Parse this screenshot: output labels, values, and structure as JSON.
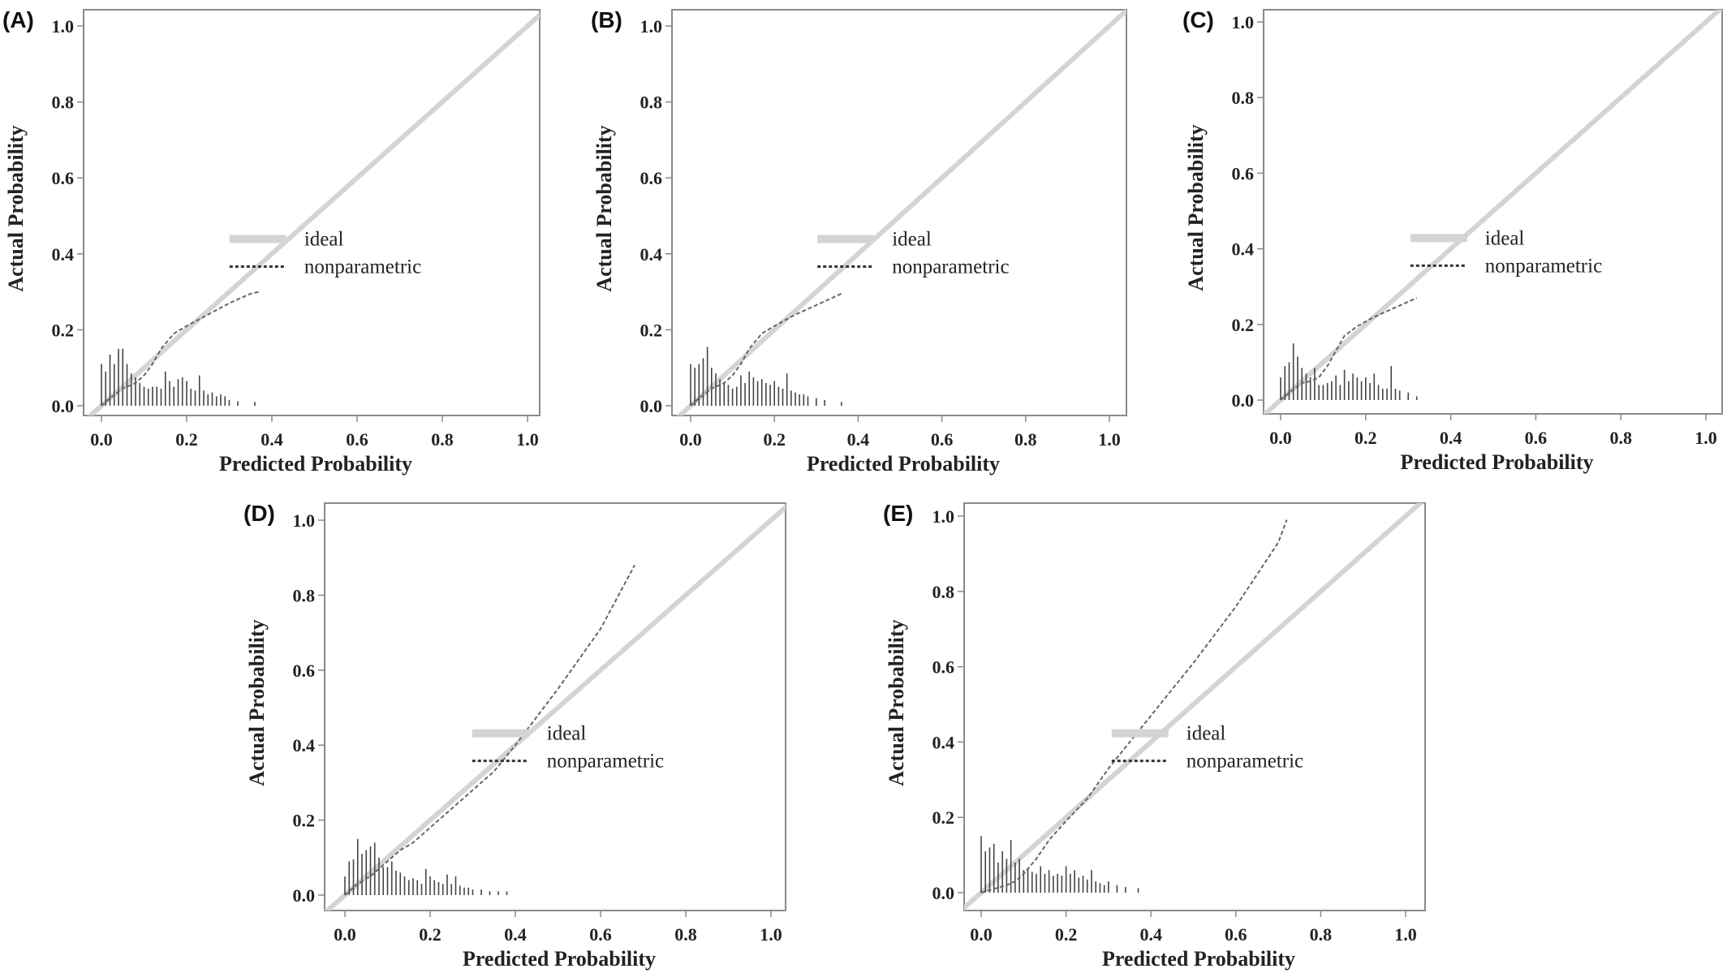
{
  "figure": {
    "panels": [
      "(A)",
      "(B)",
      "(C)",
      "(D)",
      "(E)"
    ]
  },
  "colors": {
    "ideal": "#d4d4d4",
    "nonparametric": "#666666",
    "histogram": "#444444",
    "frame": "#8a8a8a"
  },
  "chart_data": [
    {
      "panel": "(A)",
      "type": "line",
      "xlabel": "Predicted Probability",
      "ylabel": "Actual Probability",
      "xlim": [
        0,
        1
      ],
      "ylim": [
        0,
        1
      ],
      "x_ticks": [
        "0.0",
        "0.2",
        "0.4",
        "0.6",
        "0.8",
        "1.0"
      ],
      "y_ticks": [
        "0.0",
        "0.2",
        "0.4",
        "0.6",
        "0.8",
        "1.0"
      ],
      "legend": {
        "ideal": "ideal",
        "nonparametric": "nonparametric"
      },
      "series": [
        {
          "name": "ideal",
          "x": [
            0,
            1
          ],
          "y": [
            0,
            1
          ]
        },
        {
          "name": "nonparametric",
          "x": [
            0.0,
            0.02,
            0.05,
            0.08,
            0.1,
            0.12,
            0.14,
            0.17,
            0.2,
            0.25,
            0.3,
            0.35,
            0.37
          ],
          "y": [
            0.0,
            0.02,
            0.045,
            0.06,
            0.08,
            0.11,
            0.15,
            0.19,
            0.21,
            0.24,
            0.27,
            0.295,
            0.3
          ]
        }
      ],
      "histogram": {
        "x": [
          0.0,
          0.01,
          0.02,
          0.03,
          0.04,
          0.05,
          0.06,
          0.07,
          0.08,
          0.09,
          0.1,
          0.11,
          0.12,
          0.13,
          0.14,
          0.15,
          0.16,
          0.17,
          0.18,
          0.19,
          0.2,
          0.21,
          0.22,
          0.23,
          0.24,
          0.25,
          0.26,
          0.27,
          0.28,
          0.29,
          0.3,
          0.32,
          0.36
        ],
        "h": [
          0.11,
          0.09,
          0.135,
          0.11,
          0.15,
          0.15,
          0.11,
          0.085,
          0.075,
          0.06,
          0.05,
          0.045,
          0.05,
          0.05,
          0.045,
          0.09,
          0.065,
          0.05,
          0.07,
          0.075,
          0.065,
          0.045,
          0.04,
          0.08,
          0.04,
          0.03,
          0.035,
          0.025,
          0.03,
          0.025,
          0.015,
          0.012,
          0.01
        ]
      }
    },
    {
      "panel": "(B)",
      "type": "line",
      "xlabel": "Predicted Probability",
      "ylabel": "Actual Probability",
      "xlim": [
        0,
        1
      ],
      "ylim": [
        0,
        1
      ],
      "x_ticks": [
        "0.0",
        "0.2",
        "0.4",
        "0.6",
        "0.8",
        "1.0"
      ],
      "y_ticks": [
        "0.0",
        "0.2",
        "0.4",
        "0.6",
        "0.8",
        "1.0"
      ],
      "legend": {
        "ideal": "ideal",
        "nonparametric": "nonparametric"
      },
      "series": [
        {
          "name": "ideal",
          "x": [
            0,
            1
          ],
          "y": [
            0,
            1
          ]
        },
        {
          "name": "nonparametric",
          "x": [
            0.0,
            0.02,
            0.05,
            0.08,
            0.1,
            0.12,
            0.14,
            0.17,
            0.2,
            0.25,
            0.3,
            0.35,
            0.36
          ],
          "y": [
            0.0,
            0.02,
            0.045,
            0.06,
            0.08,
            0.11,
            0.15,
            0.19,
            0.21,
            0.24,
            0.265,
            0.29,
            0.295
          ]
        }
      ],
      "histogram": {
        "x": [
          0.0,
          0.01,
          0.02,
          0.03,
          0.04,
          0.05,
          0.06,
          0.07,
          0.08,
          0.09,
          0.1,
          0.11,
          0.12,
          0.13,
          0.14,
          0.15,
          0.16,
          0.17,
          0.18,
          0.19,
          0.2,
          0.21,
          0.22,
          0.23,
          0.24,
          0.25,
          0.26,
          0.27,
          0.28,
          0.3,
          0.32,
          0.36
        ],
        "h": [
          0.11,
          0.1,
          0.11,
          0.125,
          0.155,
          0.1,
          0.085,
          0.07,
          0.06,
          0.055,
          0.045,
          0.05,
          0.08,
          0.06,
          0.09,
          0.075,
          0.065,
          0.07,
          0.06,
          0.055,
          0.065,
          0.05,
          0.045,
          0.085,
          0.04,
          0.035,
          0.03,
          0.03,
          0.025,
          0.02,
          0.015,
          0.01
        ]
      }
    },
    {
      "panel": "(C)",
      "type": "line",
      "xlabel": "Predicted Probability",
      "ylabel": "Actual Probability",
      "xlim": [
        0,
        1
      ],
      "ylim": [
        0,
        1
      ],
      "x_ticks": [
        "0.0",
        "0.2",
        "0.4",
        "0.6",
        "0.8",
        "1.0"
      ],
      "y_ticks": [
        "0.0",
        "0.2",
        "0.4",
        "0.6",
        "0.8",
        "1.0"
      ],
      "legend": {
        "ideal": "ideal",
        "nonparametric": "nonparametric"
      },
      "series": [
        {
          "name": "ideal",
          "x": [
            0,
            1
          ],
          "y": [
            0,
            1
          ]
        },
        {
          "name": "nonparametric",
          "x": [
            0.0,
            0.02,
            0.05,
            0.07,
            0.09,
            0.11,
            0.13,
            0.15,
            0.18,
            0.22,
            0.27,
            0.32
          ],
          "y": [
            0.0,
            0.02,
            0.045,
            0.05,
            0.06,
            0.09,
            0.13,
            0.17,
            0.195,
            0.22,
            0.245,
            0.27
          ]
        }
      ],
      "histogram": {
        "x": [
          0.0,
          0.01,
          0.02,
          0.03,
          0.04,
          0.05,
          0.06,
          0.07,
          0.08,
          0.09,
          0.1,
          0.11,
          0.12,
          0.13,
          0.14,
          0.15,
          0.16,
          0.17,
          0.18,
          0.19,
          0.2,
          0.21,
          0.22,
          0.23,
          0.24,
          0.25,
          0.26,
          0.27,
          0.28,
          0.3,
          0.32
        ],
        "h": [
          0.06,
          0.09,
          0.1,
          0.15,
          0.115,
          0.085,
          0.07,
          0.06,
          0.085,
          0.04,
          0.04,
          0.045,
          0.05,
          0.065,
          0.04,
          0.08,
          0.05,
          0.07,
          0.06,
          0.05,
          0.06,
          0.045,
          0.07,
          0.04,
          0.03,
          0.03,
          0.09,
          0.03,
          0.025,
          0.02,
          0.01
        ]
      }
    },
    {
      "panel": "(D)",
      "type": "line",
      "xlabel": "Predicted Probability",
      "ylabel": "Actual Probability",
      "xlim": [
        0,
        1
      ],
      "ylim": [
        0,
        1
      ],
      "x_ticks": [
        "0.0",
        "0.2",
        "0.4",
        "0.6",
        "0.8",
        "1.0"
      ],
      "y_ticks": [
        "0.0",
        "0.2",
        "0.4",
        "0.6",
        "0.8",
        "1.0"
      ],
      "legend": {
        "ideal": "ideal",
        "nonparametric": "nonparametric"
      },
      "series": [
        {
          "name": "ideal",
          "x": [
            0,
            1
          ],
          "y": [
            0,
            1
          ]
        },
        {
          "name": "nonparametric",
          "x": [
            0.0,
            0.03,
            0.06,
            0.1,
            0.13,
            0.16,
            0.2,
            0.25,
            0.3,
            0.35,
            0.4,
            0.5,
            0.6,
            0.68
          ],
          "y": [
            0.0,
            0.03,
            0.05,
            0.09,
            0.12,
            0.14,
            0.18,
            0.23,
            0.28,
            0.33,
            0.4,
            0.55,
            0.71,
            0.88
          ]
        }
      ],
      "histogram": {
        "x": [
          0.0,
          0.01,
          0.02,
          0.03,
          0.04,
          0.05,
          0.06,
          0.07,
          0.08,
          0.09,
          0.1,
          0.11,
          0.12,
          0.13,
          0.14,
          0.15,
          0.16,
          0.17,
          0.18,
          0.19,
          0.2,
          0.21,
          0.22,
          0.23,
          0.24,
          0.25,
          0.26,
          0.27,
          0.28,
          0.29,
          0.3,
          0.32,
          0.34,
          0.36,
          0.38
        ],
        "h": [
          0.05,
          0.09,
          0.095,
          0.15,
          0.11,
          0.12,
          0.13,
          0.14,
          0.1,
          0.075,
          0.075,
          0.09,
          0.065,
          0.06,
          0.05,
          0.04,
          0.045,
          0.04,
          0.03,
          0.07,
          0.05,
          0.04,
          0.035,
          0.03,
          0.055,
          0.03,
          0.05,
          0.025,
          0.02,
          0.02,
          0.015,
          0.015,
          0.01,
          0.01,
          0.01
        ]
      }
    },
    {
      "panel": "(E)",
      "type": "line",
      "xlabel": "Predicted Probability",
      "ylabel": "Actual Probability",
      "xlim": [
        0,
        1
      ],
      "ylim": [
        0,
        1
      ],
      "x_ticks": [
        "0.0",
        "0.2",
        "0.4",
        "0.6",
        "0.8",
        "1.0"
      ],
      "y_ticks": [
        "0.0",
        "0.2",
        "0.4",
        "0.6",
        "0.8",
        "1.0"
      ],
      "legend": {
        "ideal": "ideal",
        "nonparametric": "nonparametric"
      },
      "series": [
        {
          "name": "ideal",
          "x": [
            0,
            1
          ],
          "y": [
            0,
            1
          ]
        },
        {
          "name": "nonparametric",
          "x": [
            0.0,
            0.03,
            0.06,
            0.08,
            0.1,
            0.13,
            0.16,
            0.2,
            0.25,
            0.3,
            0.4,
            0.5,
            0.6,
            0.7,
            0.72
          ],
          "y": [
            0.0,
            0.01,
            0.02,
            0.03,
            0.05,
            0.09,
            0.14,
            0.19,
            0.25,
            0.33,
            0.47,
            0.61,
            0.76,
            0.93,
            0.99
          ]
        }
      ],
      "histogram": {
        "x": [
          0.0,
          0.01,
          0.02,
          0.03,
          0.04,
          0.05,
          0.06,
          0.07,
          0.08,
          0.09,
          0.1,
          0.11,
          0.12,
          0.13,
          0.14,
          0.15,
          0.16,
          0.17,
          0.18,
          0.19,
          0.2,
          0.21,
          0.22,
          0.23,
          0.24,
          0.25,
          0.26,
          0.27,
          0.28,
          0.29,
          0.3,
          0.32,
          0.34,
          0.37
        ],
        "h": [
          0.15,
          0.11,
          0.12,
          0.13,
          0.08,
          0.11,
          0.09,
          0.14,
          0.08,
          0.09,
          0.06,
          0.065,
          0.055,
          0.05,
          0.07,
          0.05,
          0.06,
          0.045,
          0.05,
          0.045,
          0.07,
          0.05,
          0.06,
          0.04,
          0.045,
          0.035,
          0.06,
          0.03,
          0.025,
          0.02,
          0.03,
          0.02,
          0.015,
          0.012
        ]
      }
    }
  ]
}
